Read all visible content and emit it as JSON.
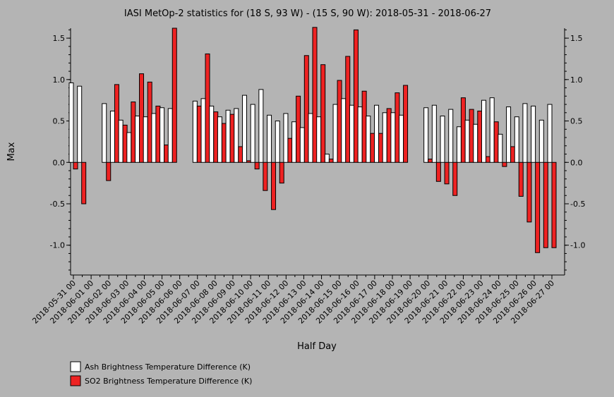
{
  "chart_data": {
    "type": "bar",
    "title": "IASI MetOp-2 statistics for (18 S, 93 W) - (15 S, 90 W): 2018-05-31 - 2018-06-27",
    "xlabel": "Half Day",
    "ylabel": "Max",
    "ylim": [
      -1.36,
      1.62
    ],
    "yticks": [
      -1.0,
      -0.5,
      0.0,
      0.5,
      1.0,
      1.5
    ],
    "ytick_labels": [
      "-1.0",
      "-0.5",
      "0.0",
      "0.5",
      "1.0",
      "1.5"
    ],
    "x_tick_labels": [
      "2018-05-31 00",
      "2018-06-01 00",
      "2018-06-02 00",
      "2018-06-03 00",
      "2018-06-04 00",
      "2018-06-05 00",
      "2018-06-06 00",
      "2018-06-07 00",
      "2018-06-08 00",
      "2018-06-09 00",
      "2018-06-10 00",
      "2018-06-11 00",
      "2018-06-12 00",
      "2018-06-13 00",
      "2018-06-14 00",
      "2018-06-15 00",
      "2018-06-16 00",
      "2018-06-17 00",
      "2018-06-18 00",
      "2018-06-19 00",
      "2018-06-20 00",
      "2018-06-21 00",
      "2018-06-22 00",
      "2018-06-23 00",
      "2018-06-24 00",
      "2018-06-25 00",
      "2018-06-26 00",
      "2018-06-27 00"
    ],
    "legend_position": "bottom-left",
    "series": [
      {
        "name": "Ash Brightness Temperature Difference (K)",
        "color": "#ffffff",
        "values": [
          0.96,
          0.92,
          null,
          null,
          0.71,
          0.62,
          0.51,
          0.36,
          0.56,
          0.55,
          0.59,
          0.66,
          0.65,
          null,
          null,
          0.74,
          0.77,
          0.68,
          0.55,
          0.63,
          0.65,
          0.81,
          0.7,
          0.88,
          0.57,
          0.5,
          0.59,
          0.49,
          0.42,
          0.59,
          0.55,
          0.1,
          0.7,
          0.77,
          0.69,
          0.67,
          0.56,
          0.69,
          0.6,
          0.6,
          0.57,
          null,
          null,
          0.66,
          0.69,
          0.56,
          0.64,
          0.43,
          0.51,
          0.46,
          0.75,
          0.78,
          0.34,
          0.67,
          0.55,
          0.71,
          0.68,
          0.51,
          0.7
        ]
      },
      {
        "name": "SO2 Brightness Temperature Difference (K)",
        "color": "#ee2222",
        "values": [
          -0.08,
          -0.5,
          null,
          null,
          -0.22,
          0.94,
          0.45,
          0.73,
          1.07,
          0.97,
          0.68,
          0.21,
          1.62,
          null,
          null,
          0.68,
          1.31,
          0.61,
          0.47,
          0.58,
          0.19,
          0.02,
          -0.08,
          -0.34,
          -0.57,
          -0.25,
          0.29,
          0.8,
          1.29,
          1.63,
          1.18,
          0.04,
          0.99,
          1.28,
          1.6,
          0.86,
          0.35,
          0.35,
          0.65,
          0.84,
          0.93,
          null,
          null,
          0.04,
          -0.23,
          -0.26,
          -0.4,
          0.78,
          0.64,
          0.62,
          0.07,
          0.49,
          -0.05,
          0.19,
          -0.41,
          -0.72,
          -1.09,
          -1.03,
          -1.03
        ]
      }
    ]
  }
}
